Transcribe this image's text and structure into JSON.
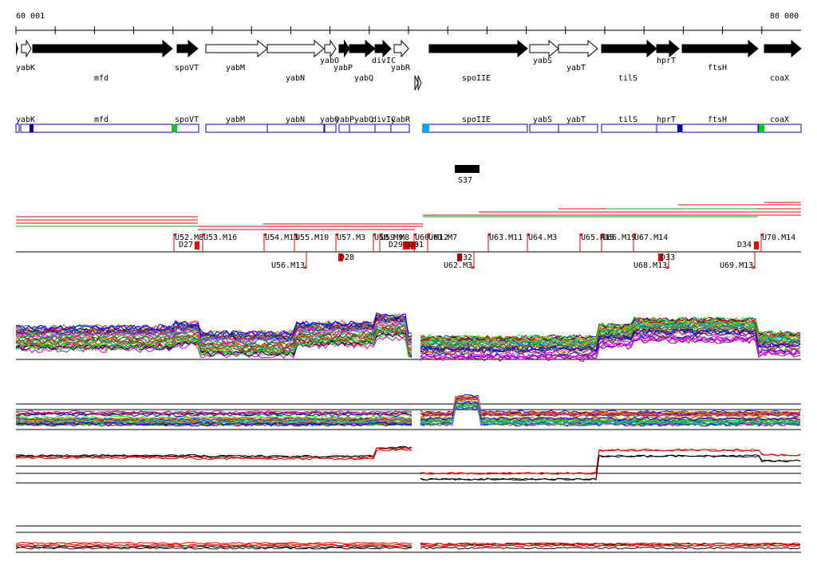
{
  "ruler": {
    "start_label": "60 001",
    "end_label": "80 000"
  },
  "genes_track1": [
    {
      "name": "yabK",
      "strand": "+",
      "filled": false,
      "label_row": 1
    },
    {
      "name": "mfd",
      "strand": "+",
      "filled": true,
      "label_row": 2
    },
    {
      "name": "spoVT",
      "strand": "+",
      "filled": true,
      "label_row": 1
    },
    {
      "name": "yabM",
      "strand": "+",
      "filled": false,
      "label_row": 1
    },
    {
      "name": "yabN",
      "strand": "+",
      "filled": false,
      "label_row": 2
    },
    {
      "name": "yabO",
      "strand": "+",
      "filled": false,
      "label_row": 1
    },
    {
      "name": "yabP",
      "strand": "+",
      "filled": true,
      "label_row": 2
    },
    {
      "name": "yabQ",
      "strand": "+",
      "filled": true,
      "label_row": 3
    },
    {
      "name": "divIC",
      "strand": "+",
      "filled": true,
      "label_row": 1
    },
    {
      "name": "yabR",
      "strand": "+",
      "filled": false,
      "label_row": 2
    },
    {
      "name": "spoIIE",
      "strand": "+",
      "filled": true,
      "label_row": 2
    },
    {
      "name": "yabS",
      "strand": "+",
      "filled": false,
      "label_row": 1
    },
    {
      "name": "yabT",
      "strand": "+",
      "filled": false,
      "label_row": 2
    },
    {
      "name": "tilS",
      "strand": "+",
      "filled": true,
      "label_row": 2
    },
    {
      "name": "hprT",
      "strand": "+",
      "filled": true,
      "label_row": 1
    },
    {
      "name": "ftsH",
      "strand": "+",
      "filled": true,
      "label_row": 2
    },
    {
      "name": "coaX",
      "strand": "+",
      "filled": true,
      "label_row": 2
    }
  ],
  "genes_track2": [
    "yabK",
    "mfd",
    "spoVT",
    "yabM",
    "yabN",
    "yabO",
    "yabP",
    "yabQ",
    "divIC",
    "yabR",
    "spoIIE",
    "yabS",
    "yabT",
    "tilS",
    "hprT",
    "ftsH",
    "coaX"
  ],
  "feature_S": {
    "name": "S37"
  },
  "upstream_labels": [
    "U52.M8",
    "U53.M16",
    "U54.M13",
    "U55.M10",
    "U57.M3",
    "U58.M9",
    "U59.M8",
    "U60.M12",
    "U61.M7",
    "U63.M11",
    "U64.M3",
    "U65.M15",
    "U66.M19",
    "U67.M14",
    "U70.M14",
    "U56.M13",
    "U62.M3",
    "U68.M13",
    "U69.M13"
  ],
  "downstream_labels": [
    "D27",
    "D28",
    "D29",
    "D30",
    "D31",
    "D32",
    "D33",
    "D34"
  ],
  "colors": {
    "gene_fill": "#000000",
    "box_outline": "#0000cc",
    "marker": "#ff0000",
    "accent_green": "#00cc00",
    "accent_cyan": "#00aaff"
  },
  "tracks": [
    "expression-profiles-all",
    "expression-profiles-tiling",
    "expression-summary-1",
    "expression-summary-2"
  ]
}
